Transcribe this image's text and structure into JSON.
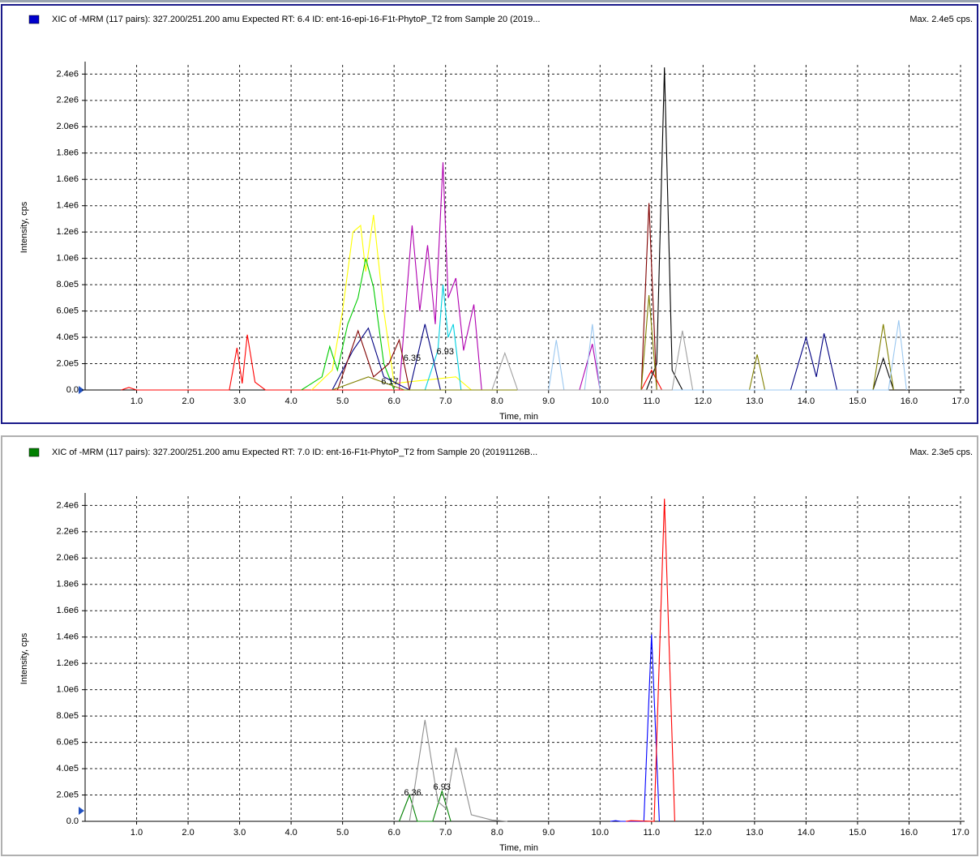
{
  "chart_data": [
    {
      "type": "line",
      "title": "XIC of -MRM (117 pairs): 327.200/251.200 amu Expected RT: 6.4 ID:  ent-16-epi-16-F1t-PhytoP_T2 from Sample 20 (2019...",
      "subtitle": "Max. 2.4e5 cps.",
      "x_label": "Time, min",
      "y_label": "Intensity, cps",
      "xlim": [
        0,
        17
      ],
      "ylim": [
        0,
        2470000
      ],
      "grid": true,
      "xticks": [
        {
          "value": 1,
          "label": "1.0"
        },
        {
          "value": 2,
          "label": "2.0"
        },
        {
          "value": 3,
          "label": "3.0"
        },
        {
          "value": 4,
          "label": "4.0"
        },
        {
          "value": 5,
          "label": "5.0"
        },
        {
          "value": 6,
          "label": "6.0"
        },
        {
          "value": 7,
          "label": "7.0"
        },
        {
          "value": 8,
          "label": "8.0"
        },
        {
          "value": 9,
          "label": "9.0"
        },
        {
          "value": 10,
          "label": "10.0"
        },
        {
          "value": 11,
          "label": "11.0"
        },
        {
          "value": 12,
          "label": "12.0"
        },
        {
          "value": 13,
          "label": "13.0"
        },
        {
          "value": 14,
          "label": "14.0"
        },
        {
          "value": 15,
          "label": "15.0"
        },
        {
          "value": 16,
          "label": "16.0"
        },
        {
          "value": 17,
          "label": "17.0"
        }
      ],
      "yticks": [
        {
          "value": 0,
          "label": "0.0"
        },
        {
          "value": 200000,
          "label": "2.0e5"
        },
        {
          "value": 400000,
          "label": "4.0e5"
        },
        {
          "value": 600000,
          "label": "6.0e5"
        },
        {
          "value": 800000,
          "label": "8.0e5"
        },
        {
          "value": 1000000,
          "label": "1.0e6"
        },
        {
          "value": 1200000,
          "label": "1.2e6"
        },
        {
          "value": 1400000,
          "label": "1.4e6"
        },
        {
          "value": 1600000,
          "label": "1.6e6"
        },
        {
          "value": 1800000,
          "label": "1.8e6"
        },
        {
          "value": 2000000,
          "label": "2.0e6"
        },
        {
          "value": 2200000,
          "label": "2.2e6"
        },
        {
          "value": 2400000,
          "label": "2.4e6"
        }
      ],
      "annotations": [
        {
          "text": "6.35",
          "x": 6.35
        },
        {
          "text": "6.93",
          "x": 6.93
        },
        {
          "text": "6.17",
          "x": 6.17
        }
      ],
      "series": [
        {
          "color": "#ff0000",
          "x": [
            0.7,
            0.85,
            1.0,
            2.8,
            2.95,
            3.05,
            3.15,
            3.3,
            3.5,
            10.8,
            11.0,
            11.2
          ],
          "values": [
            0,
            20000,
            0,
            0,
            320000,
            50000,
            420000,
            60000,
            0,
            0,
            150000,
            0
          ]
        },
        {
          "color": "#ffff00",
          "x": [
            4.4,
            4.8,
            5.0,
            5.2,
            5.35,
            5.45,
            5.6,
            5.8,
            6.0,
            7.2,
            7.5
          ],
          "values": [
            0,
            150000,
            600000,
            1200000,
            1250000,
            900000,
            1330000,
            600000,
            50000,
            100000,
            0
          ]
        },
        {
          "color": "#00cc00",
          "x": [
            4.2,
            4.6,
            4.75,
            4.9,
            5.1,
            5.3,
            5.45,
            5.6,
            5.8,
            6.0
          ],
          "values": [
            0,
            100000,
            330000,
            150000,
            500000,
            700000,
            1000000,
            780000,
            200000,
            0
          ]
        },
        {
          "color": "#b000b0",
          "x": [
            6.1,
            6.35,
            6.5,
            6.65,
            6.8,
            6.95,
            7.05,
            7.2,
            7.35,
            7.55,
            7.7,
            9.6,
            9.85,
            10.0
          ],
          "values": [
            0,
            1250000,
            600000,
            1100000,
            500000,
            1730000,
            700000,
            850000,
            300000,
            650000,
            0,
            0,
            350000,
            0
          ]
        },
        {
          "color": "#00d0e0",
          "x": [
            6.6,
            6.85,
            6.95,
            7.05,
            7.15,
            7.3
          ],
          "values": [
            0,
            300000,
            800000,
            400000,
            500000,
            0
          ]
        },
        {
          "color": "#000080",
          "x": [
            4.8,
            5.2,
            5.5,
            5.8,
            6.3,
            6.6,
            6.9,
            13.7,
            14.0,
            14.2,
            14.35,
            14.6
          ],
          "values": [
            0,
            300000,
            470000,
            100000,
            0,
            500000,
            0,
            0,
            400000,
            100000,
            430000,
            0
          ]
        },
        {
          "color": "#800000",
          "x": [
            4.9,
            5.3,
            5.6,
            5.9,
            6.1,
            6.3,
            10.8,
            10.95,
            11.1
          ],
          "values": [
            0,
            450000,
            100000,
            200000,
            380000,
            0,
            0,
            1420000,
            0
          ]
        },
        {
          "color": "#000000",
          "x": [
            10.9,
            11.1,
            11.25,
            11.4,
            11.6,
            15.3,
            15.5,
            15.7
          ],
          "values": [
            0,
            200000,
            2450000,
            150000,
            0,
            0,
            240000,
            0
          ]
        },
        {
          "color": "#808000",
          "x": [
            4.8,
            5.5,
            6.2,
            10.8,
            10.95,
            11.1,
            12.9,
            13.05,
            13.2,
            15.3,
            15.5,
            15.7
          ],
          "values": [
            0,
            100000,
            0,
            0,
            720000,
            0,
            0,
            270000,
            0,
            0,
            500000,
            0
          ]
        },
        {
          "color": "#9cc8f0",
          "x": [
            9.0,
            9.15,
            9.3,
            9.7,
            9.85,
            10.0,
            15.6,
            15.8,
            15.95
          ],
          "values": [
            0,
            380000,
            0,
            0,
            500000,
            0,
            0,
            530000,
            0
          ]
        },
        {
          "color": "#a0a0a0",
          "x": [
            7.9,
            8.15,
            8.4,
            11.4,
            11.6,
            11.8
          ],
          "values": [
            0,
            280000,
            0,
            0,
            450000,
            0
          ]
        }
      ]
    },
    {
      "type": "line",
      "title": "XIC of -MRM (117 pairs): 327.200/251.200 amu Expected RT: 7.0 ID:  ent-16-F1t-PhytoP_T2 from Sample 20 (20191126B...",
      "subtitle": "Max. 2.3e5 cps.",
      "x_label": "Time, min",
      "y_label": "Intensity, cps",
      "xlim": [
        0,
        17
      ],
      "ylim": [
        0,
        2470000
      ],
      "grid": true,
      "xticks": [
        {
          "value": 1,
          "label": "1.0"
        },
        {
          "value": 2,
          "label": "2.0"
        },
        {
          "value": 3,
          "label": "3.0"
        },
        {
          "value": 4,
          "label": "4.0"
        },
        {
          "value": 5,
          "label": "5.0"
        },
        {
          "value": 6,
          "label": "6.0"
        },
        {
          "value": 7,
          "label": "7.0"
        },
        {
          "value": 8,
          "label": "8.0"
        },
        {
          "value": 9,
          "label": "9.0"
        },
        {
          "value": 10,
          "label": "10.0"
        },
        {
          "value": 11,
          "label": "11.0"
        },
        {
          "value": 12,
          "label": "12.0"
        },
        {
          "value": 13,
          "label": "13.0"
        },
        {
          "value": 14,
          "label": "14.0"
        },
        {
          "value": 15,
          "label": "15.0"
        },
        {
          "value": 16,
          "label": "16.0"
        },
        {
          "value": 17,
          "label": "17.0"
        }
      ],
      "yticks": [
        {
          "value": 0,
          "label": "0.0"
        },
        {
          "value": 200000,
          "label": "2.0e5"
        },
        {
          "value": 400000,
          "label": "4.0e5"
        },
        {
          "value": 600000,
          "label": "6.0e5"
        },
        {
          "value": 800000,
          "label": "8.0e5"
        },
        {
          "value": 1000000,
          "label": "1.0e6"
        },
        {
          "value": 1200000,
          "label": "1.2e6"
        },
        {
          "value": 1400000,
          "label": "1.4e6"
        },
        {
          "value": 1600000,
          "label": "1.6e6"
        },
        {
          "value": 1800000,
          "label": "1.8e6"
        },
        {
          "value": 2000000,
          "label": "2.0e6"
        },
        {
          "value": 2200000,
          "label": "2.2e6"
        },
        {
          "value": 2400000,
          "label": "2.4e6"
        }
      ],
      "annotations": [
        {
          "text": "6.36",
          "x": 6.36
        },
        {
          "text": "6.93",
          "x": 6.93
        }
      ],
      "series": [
        {
          "color": "#008000",
          "x": [
            6.1,
            6.3,
            6.45,
            6.75,
            6.93,
            7.1
          ],
          "values": [
            0,
            200000,
            0,
            0,
            230000,
            0
          ]
        },
        {
          "color": "#909090",
          "x": [
            6.3,
            6.6,
            6.85,
            7.0,
            7.2,
            7.5,
            7.9,
            8.2
          ],
          "values": [
            0,
            770000,
            150000,
            100000,
            560000,
            50000,
            10000,
            0
          ]
        },
        {
          "color": "#0000ff",
          "x": [
            10.2,
            10.3,
            10.4,
            10.85,
            11.0,
            11.15
          ],
          "values": [
            0,
            5000,
            0,
            0,
            1420000,
            0
          ]
        },
        {
          "color": "#ff0000",
          "x": [
            10.5,
            10.6,
            11.05,
            11.25,
            11.45
          ],
          "values": [
            0,
            5000,
            0,
            2450000,
            0
          ]
        }
      ]
    }
  ]
}
